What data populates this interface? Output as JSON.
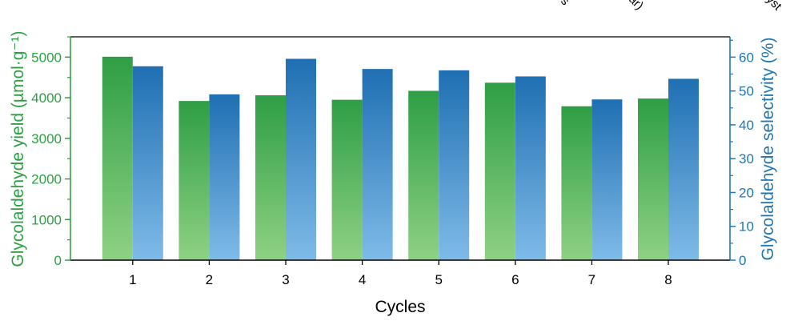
{
  "chart_data": {
    "type": "bar",
    "categories": [
      "1",
      "2",
      "3",
      "4",
      "5",
      "6",
      "7",
      "8"
    ],
    "series": [
      {
        "name": "Glycolaldehyde yield",
        "axis": "left",
        "values": [
          5010,
          3920,
          4060,
          3950,
          4170,
          4370,
          3790,
          3980
        ]
      },
      {
        "name": "Glycolaldehyde selectivity",
        "axis": "right",
        "values": [
          57.3,
          49.0,
          59.5,
          56.5,
          56.1,
          54.3,
          47.5,
          53.6
        ]
      }
    ],
    "xlabel": "Cycles",
    "ylabel_left": "Glycolaldehyde yield (µmol·g⁻¹)",
    "ylabel_right": "Glycolaldehyde selectivity (%)",
    "ylim_left": [
      0,
      5500
    ],
    "ylim_right": [
      0,
      66
    ],
    "yticks_left": [
      "0",
      "1000",
      "2000",
      "3000",
      "4000",
      "5000"
    ],
    "yticks_right": [
      "0",
      "10",
      "20",
      "30",
      "40",
      "50",
      "60"
    ],
    "top_text_fragments": [
      "s",
      "ar)",
      "yst"
    ],
    "colors": {
      "left_axis": "#2ea043",
      "right_axis": "#1f77b4",
      "green_top": "#2e9e45",
      "green_bottom": "#8fd184",
      "blue_top": "#1f6fb2",
      "blue_bottom": "#7fbbe8"
    }
  }
}
